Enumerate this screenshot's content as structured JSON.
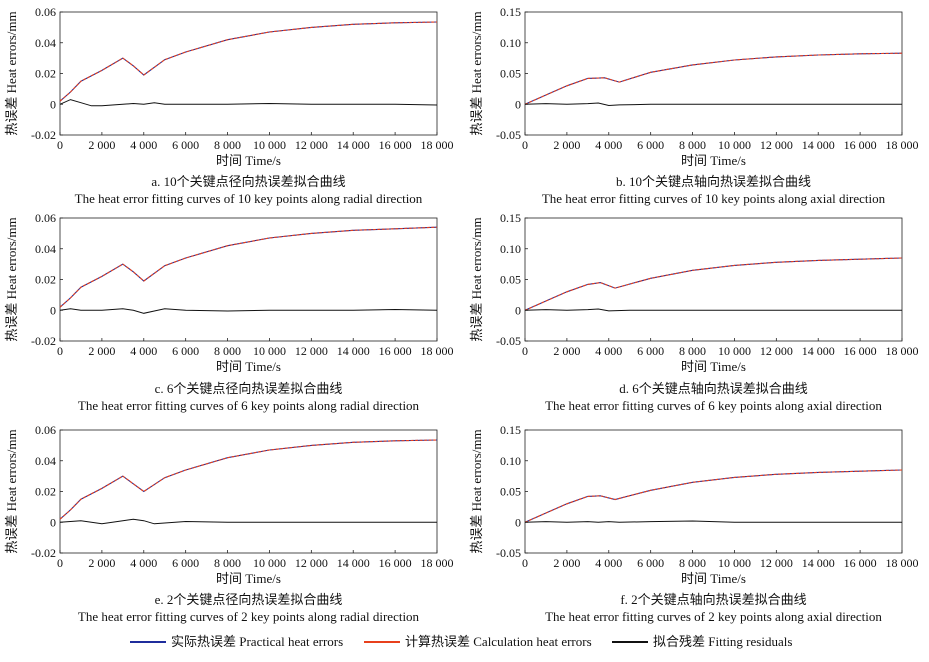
{
  "legend": {
    "practical": "实际热误差 Practical heat errors",
    "calculation": "计算热误差 Calculation heat errors",
    "residual": "拟合残差 Fitting residuals"
  },
  "colors": {
    "practical": "#1f2d9c",
    "calculation": "#e8401c",
    "residual": "#111111"
  },
  "chart_data": [
    {
      "id": "a",
      "type": "line",
      "caption_cn": "a. 10个关键点径向热误差拟合曲线",
      "caption_en": "The heat error fitting curves  of 10 key points  along radial direction",
      "xlabel": "时间 Time/s",
      "ylabel": "热误差 Heat errors/mm",
      "xlim": [
        0,
        18000
      ],
      "ylim": [
        -0.02,
        0.06
      ],
      "xticks": [
        0,
        2000,
        4000,
        6000,
        8000,
        10000,
        12000,
        14000,
        16000,
        18000
      ],
      "xtick_labels": [
        "0",
        "2 000",
        "4 000",
        "6 000",
        "8 000",
        "10 000",
        "12 000",
        "14 000",
        "16 000",
        "18 000"
      ],
      "yticks": [
        -0.02,
        0,
        0.02,
        0.04,
        0.06
      ],
      "ytick_labels": [
        "-0.02",
        "0",
        "0.02",
        "0.04",
        "0.06"
      ],
      "series": [
        {
          "name": "实际热误差 Practical heat errors",
          "x": [
            0,
            500,
            1000,
            2000,
            3000,
            3500,
            4000,
            5000,
            6000,
            8000,
            10000,
            12000,
            14000,
            16000,
            18000
          ],
          "values": [
            0.002,
            0.008,
            0.015,
            0.022,
            0.03,
            0.025,
            0.019,
            0.029,
            0.034,
            0.042,
            0.047,
            0.05,
            0.052,
            0.053,
            0.0535
          ]
        },
        {
          "name": "计算热误差 Calculation heat errors",
          "x": [
            0,
            500,
            1000,
            2000,
            3000,
            3500,
            4000,
            5000,
            6000,
            8000,
            10000,
            12000,
            14000,
            16000,
            18000
          ],
          "values": [
            0.002,
            0.008,
            0.015,
            0.022,
            0.03,
            0.025,
            0.019,
            0.029,
            0.034,
            0.042,
            0.047,
            0.05,
            0.052,
            0.053,
            0.0535
          ]
        },
        {
          "name": "拟合残差 Fitting residuals",
          "x": [
            0,
            500,
            1000,
            1500,
            2000,
            3000,
            3500,
            4000,
            4500,
            5000,
            6000,
            8000,
            10000,
            12000,
            14000,
            16000,
            18000
          ],
          "values": [
            0,
            0.003,
            0.001,
            -0.001,
            -0.001,
            0,
            0.0005,
            0,
            0.001,
            0,
            0,
            0,
            0.0005,
            0,
            0,
            0,
            -0.0005
          ]
        }
      ]
    },
    {
      "id": "b",
      "type": "line",
      "caption_cn": "b. 10个关键点轴向热误差拟合曲线",
      "caption_en": "The heat error fitting curves  of 10 key points along axial direction",
      "xlabel": "时间 Time/s",
      "ylabel": "热误差 Heat errors/mm",
      "xlim": [
        0,
        18000
      ],
      "ylim": [
        -0.05,
        0.15
      ],
      "xticks": [
        0,
        2000,
        4000,
        6000,
        8000,
        10000,
        12000,
        14000,
        16000,
        18000
      ],
      "xtick_labels": [
        "0",
        "2 000",
        "4 000",
        "6 000",
        "8 000",
        "10 000",
        "12 000",
        "14 000",
        "16 000",
        "18 000"
      ],
      "yticks": [
        -0.05,
        0,
        0.05,
        0.1,
        0.15
      ],
      "ytick_labels": [
        "-0.05",
        "0",
        "0.05",
        "0.10",
        "0.15"
      ],
      "series": [
        {
          "name": "实际热误差 Practical heat errors",
          "x": [
            0,
            1000,
            2000,
            3000,
            3800,
            4500,
            6000,
            8000,
            10000,
            12000,
            14000,
            16000,
            18000
          ],
          "values": [
            0,
            0.015,
            0.03,
            0.042,
            0.043,
            0.036,
            0.052,
            0.064,
            0.072,
            0.077,
            0.08,
            0.082,
            0.083
          ]
        },
        {
          "name": "计算热误差 Calculation heat errors",
          "x": [
            0,
            1000,
            2000,
            3000,
            3800,
            4500,
            6000,
            8000,
            10000,
            12000,
            14000,
            16000,
            18000
          ],
          "values": [
            0,
            0.015,
            0.03,
            0.042,
            0.043,
            0.036,
            0.052,
            0.064,
            0.072,
            0.077,
            0.08,
            0.082,
            0.083
          ]
        },
        {
          "name": "拟合残差 Fitting residuals",
          "x": [
            0,
            1000,
            2000,
            3000,
            3500,
            4000,
            4500,
            6000,
            10000,
            14000,
            18000
          ],
          "values": [
            0,
            0.001,
            0,
            0.001,
            0.002,
            -0.002,
            -0.001,
            0,
            0,
            0,
            0
          ]
        }
      ]
    },
    {
      "id": "c",
      "type": "line",
      "caption_cn": "c. 6个关键点径向热误差拟合曲线",
      "caption_en": "The heat error fitting curves  of 6 key points along radial direction",
      "xlabel": "时间 Time/s",
      "ylabel": "热误差 Heat errors/mm",
      "xlim": [
        0,
        18000
      ],
      "ylim": [
        -0.02,
        0.06
      ],
      "xticks": [
        0,
        2000,
        4000,
        6000,
        8000,
        10000,
        12000,
        14000,
        16000,
        18000
      ],
      "xtick_labels": [
        "0",
        "2 000",
        "4 000",
        "6 000",
        "8 000",
        "10 000",
        "12 000",
        "14 000",
        "16 000",
        "18 000"
      ],
      "yticks": [
        -0.02,
        0,
        0.02,
        0.04,
        0.06
      ],
      "ytick_labels": [
        "-0.02",
        "0",
        "0.02",
        "0.04",
        "0.06"
      ],
      "series": [
        {
          "name": "实际热误差 Practical heat errors",
          "x": [
            0,
            500,
            1000,
            2000,
            3000,
            3500,
            4000,
            5000,
            6000,
            8000,
            10000,
            12000,
            14000,
            16000,
            18000
          ],
          "values": [
            0.002,
            0.008,
            0.015,
            0.022,
            0.03,
            0.025,
            0.019,
            0.029,
            0.034,
            0.042,
            0.047,
            0.05,
            0.052,
            0.053,
            0.054
          ]
        },
        {
          "name": "计算热误差 Calculation heat errors",
          "x": [
            0,
            500,
            1000,
            2000,
            3000,
            3500,
            4000,
            5000,
            6000,
            8000,
            10000,
            12000,
            14000,
            16000,
            18000
          ],
          "values": [
            0.002,
            0.008,
            0.015,
            0.022,
            0.03,
            0.025,
            0.019,
            0.029,
            0.034,
            0.042,
            0.047,
            0.05,
            0.052,
            0.053,
            0.054
          ]
        },
        {
          "name": "拟合残差 Fitting residuals",
          "x": [
            0,
            500,
            1000,
            2000,
            3000,
            3500,
            4000,
            4500,
            5000,
            6000,
            8000,
            10000,
            12000,
            14000,
            16000,
            18000
          ],
          "values": [
            0,
            0.001,
            0,
            0,
            0.001,
            0,
            -0.002,
            -0.0005,
            0.001,
            0,
            -0.0005,
            0,
            0,
            0,
            0.0005,
            0
          ]
        }
      ]
    },
    {
      "id": "d",
      "type": "line",
      "caption_cn": "d. 6个关键点轴向热误差拟合曲线",
      "caption_en": "The heat error fitting curves  of 6 key points along axial direction",
      "xlabel": "时间 Time/s",
      "ylabel": "热误差 Heat errors/mm",
      "xlim": [
        0,
        18000
      ],
      "ylim": [
        -0.05,
        0.15
      ],
      "xticks": [
        0,
        2000,
        4000,
        6000,
        8000,
        10000,
        12000,
        14000,
        16000,
        18000
      ],
      "xtick_labels": [
        "0",
        "2 000",
        "4 000",
        "6 000",
        "8 000",
        "10 000",
        "12 000",
        "14 000",
        "16 000",
        "18 000"
      ],
      "yticks": [
        -0.05,
        0,
        0.05,
        0.1,
        0.15
      ],
      "ytick_labels": [
        "-0.05",
        "0",
        "0.05",
        "0.10",
        "0.15"
      ],
      "series": [
        {
          "name": "实际热误差 Practical heat errors",
          "x": [
            0,
            1000,
            2000,
            3000,
            3600,
            4300,
            6000,
            8000,
            10000,
            12000,
            14000,
            16000,
            18000
          ],
          "values": [
            0,
            0.015,
            0.03,
            0.042,
            0.045,
            0.036,
            0.052,
            0.065,
            0.073,
            0.078,
            0.081,
            0.083,
            0.085
          ]
        },
        {
          "name": "计算热误差 Calculation heat errors",
          "x": [
            0,
            1000,
            2000,
            3000,
            3600,
            4300,
            6000,
            8000,
            10000,
            12000,
            14000,
            16000,
            18000
          ],
          "values": [
            0,
            0.015,
            0.03,
            0.042,
            0.045,
            0.036,
            0.052,
            0.065,
            0.073,
            0.078,
            0.081,
            0.083,
            0.085
          ]
        },
        {
          "name": "拟合残差 Fitting residuals",
          "x": [
            0,
            1000,
            2000,
            3000,
            3500,
            4000,
            5000,
            6000,
            10000,
            14000,
            18000
          ],
          "values": [
            0,
            0.001,
            0,
            0.001,
            0.002,
            -0.001,
            0,
            0,
            0,
            0,
            0
          ]
        }
      ]
    },
    {
      "id": "e",
      "type": "line",
      "caption_cn": "e. 2个关键点径向热误差拟合曲线",
      "caption_en": "The heat error fitting curves  of 2 key points along radial direction",
      "xlabel": "时间 Time/s",
      "ylabel": "热误差 Heat errors/mm",
      "xlim": [
        0,
        18000
      ],
      "ylim": [
        -0.02,
        0.06
      ],
      "xticks": [
        0,
        2000,
        4000,
        6000,
        8000,
        10000,
        12000,
        14000,
        16000,
        18000
      ],
      "xtick_labels": [
        "0",
        "2 000",
        "4 000",
        "6 000",
        "8 000",
        "10 000",
        "12 000",
        "14 000",
        "16 000",
        "18 000"
      ],
      "yticks": [
        -0.02,
        0,
        0.02,
        0.04,
        0.06
      ],
      "ytick_labels": [
        "-0.02",
        "0",
        "0.02",
        "0.04",
        "0.06"
      ],
      "series": [
        {
          "name": "实际热误差 Practical heat errors",
          "x": [
            0,
            500,
            1000,
            2000,
            3000,
            3500,
            4000,
            5000,
            6000,
            8000,
            10000,
            12000,
            14000,
            16000,
            18000
          ],
          "values": [
            0.002,
            0.008,
            0.015,
            0.022,
            0.03,
            0.025,
            0.02,
            0.029,
            0.034,
            0.042,
            0.047,
            0.05,
            0.052,
            0.053,
            0.0535
          ]
        },
        {
          "name": "计算热误差 Calculation heat errors",
          "x": [
            0,
            500,
            1000,
            2000,
            3000,
            3500,
            4000,
            5000,
            6000,
            8000,
            10000,
            12000,
            14000,
            16000,
            18000
          ],
          "values": [
            0.002,
            0.008,
            0.015,
            0.022,
            0.03,
            0.025,
            0.02,
            0.029,
            0.034,
            0.042,
            0.047,
            0.05,
            0.052,
            0.053,
            0.0535
          ]
        },
        {
          "name": "拟合残差 Fitting residuals",
          "x": [
            0,
            1000,
            2000,
            2500,
            3000,
            3500,
            4000,
            4500,
            6000,
            8000,
            10000,
            12000,
            14000,
            16000,
            18000
          ],
          "values": [
            0,
            0.001,
            -0.001,
            0,
            0.001,
            0.002,
            0.001,
            -0.001,
            0.0005,
            0,
            0,
            0,
            0,
            0,
            0
          ]
        }
      ]
    },
    {
      "id": "f",
      "type": "line",
      "caption_cn": "f. 2个关键点轴向热误差拟合曲线",
      "caption_en": "The heat error fitting curves  of 2 key points along axial direction",
      "xlabel": "时间 Time/s",
      "ylabel": "热误差 Heat errors/mm",
      "xlim": [
        0,
        18000
      ],
      "ylim": [
        -0.05,
        0.15
      ],
      "xticks": [
        0,
        2000,
        4000,
        6000,
        8000,
        10000,
        12000,
        14000,
        16000,
        18000
      ],
      "xtick_labels": [
        "0",
        "2 000",
        "4 000",
        "6 000",
        "8 000",
        "10 000",
        "12 000",
        "14 000",
        "16 000",
        "18 000"
      ],
      "yticks": [
        -0.05,
        0,
        0.05,
        0.1,
        0.15
      ],
      "ytick_labels": [
        "-0.05",
        "0",
        "0.05",
        "0.10",
        "0.15"
      ],
      "series": [
        {
          "name": "实际热误差 Practical heat errors",
          "x": [
            0,
            1000,
            2000,
            3000,
            3600,
            4300,
            6000,
            8000,
            10000,
            12000,
            14000,
            16000,
            18000
          ],
          "values": [
            0,
            0.015,
            0.03,
            0.042,
            0.043,
            0.037,
            0.052,
            0.065,
            0.073,
            0.078,
            0.081,
            0.083,
            0.085
          ]
        },
        {
          "name": "计算热误差 Calculation heat errors",
          "x": [
            0,
            1000,
            2000,
            3000,
            3600,
            4300,
            6000,
            8000,
            10000,
            12000,
            14000,
            16000,
            18000
          ],
          "values": [
            0,
            0.015,
            0.03,
            0.042,
            0.043,
            0.037,
            0.052,
            0.065,
            0.073,
            0.078,
            0.081,
            0.083,
            0.085
          ]
        },
        {
          "name": "拟合残差 Fitting residuals",
          "x": [
            0,
            1000,
            2000,
            3000,
            3500,
            4000,
            4500,
            6000,
            8000,
            10000,
            14000,
            18000
          ],
          "values": [
            0,
            0.001,
            0,
            0.001,
            0,
            0.001,
            0,
            0.001,
            0.002,
            0,
            0,
            0
          ]
        }
      ]
    }
  ]
}
